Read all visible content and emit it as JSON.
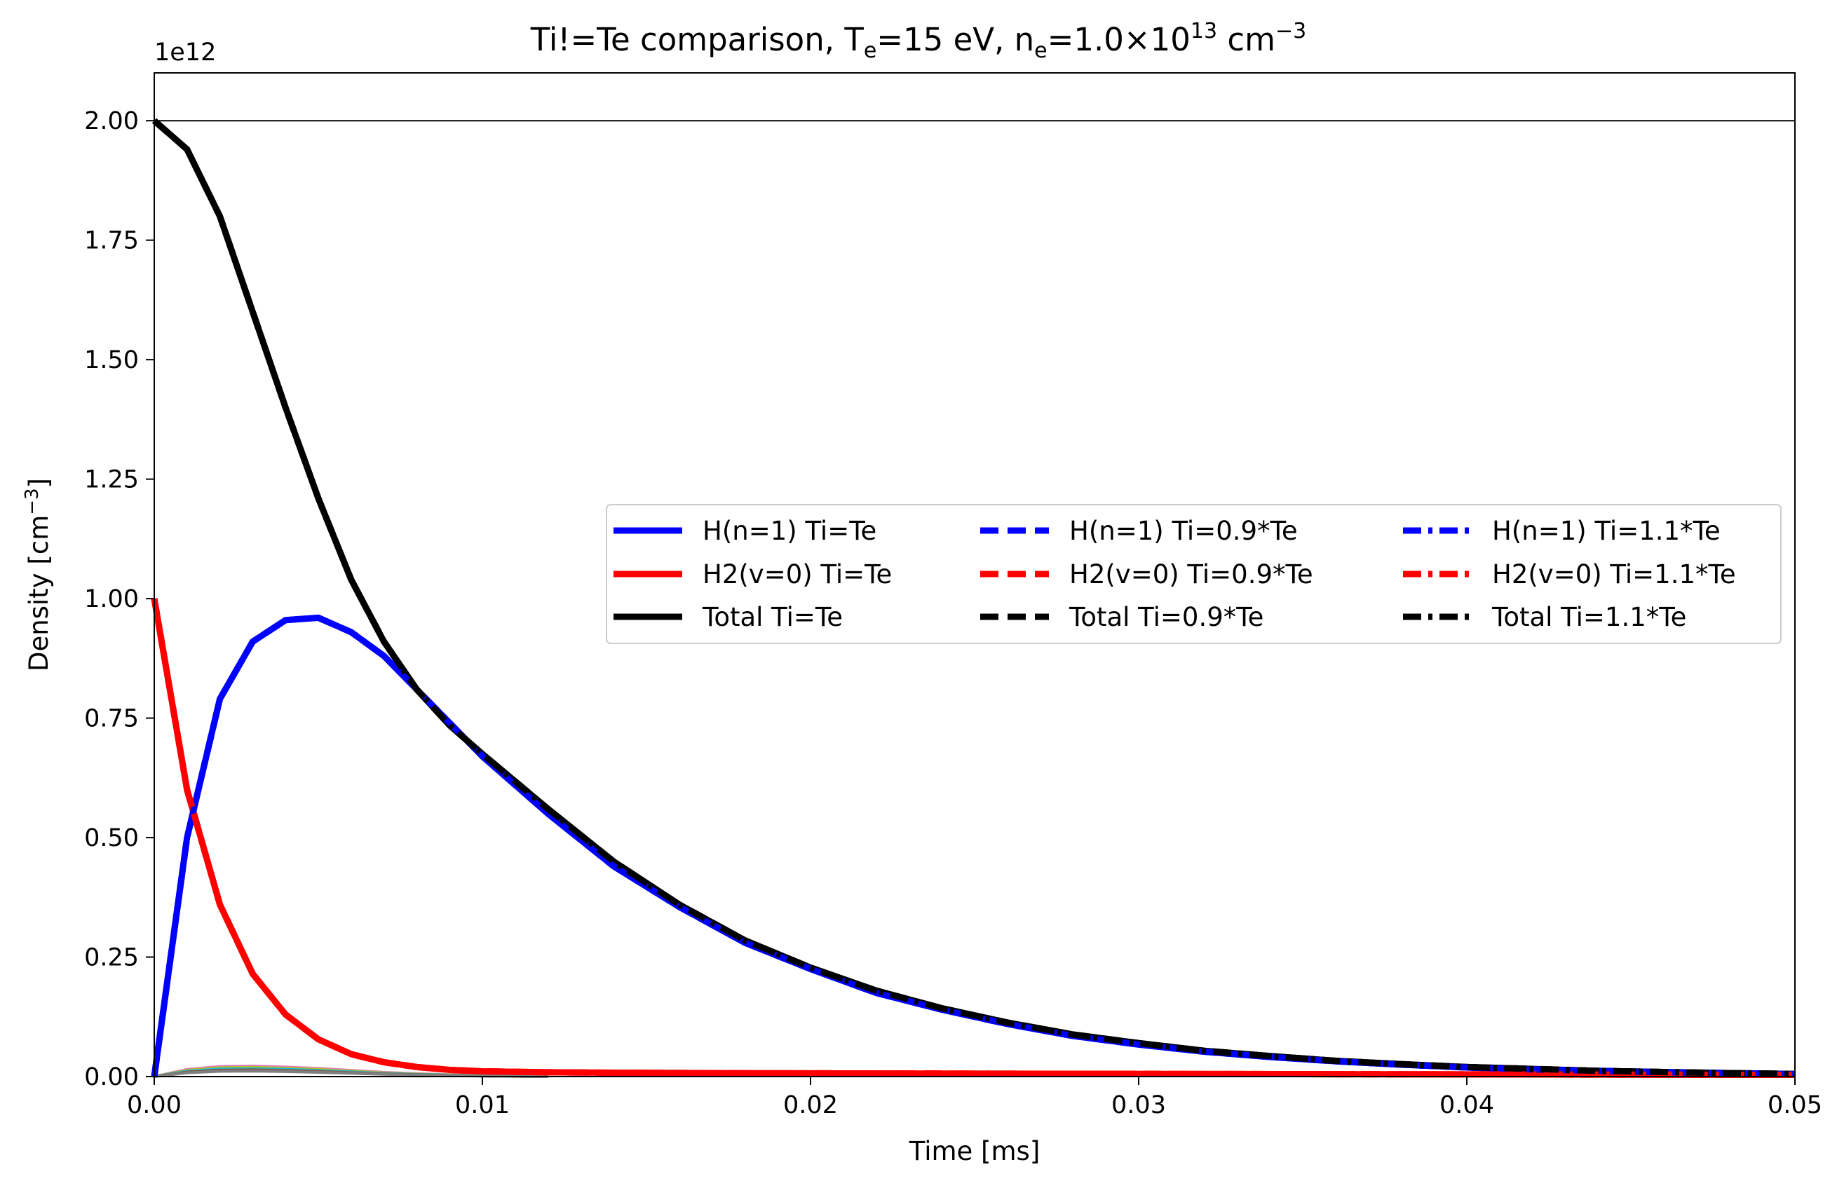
{
  "chart_data": {
    "type": "line",
    "title": {
      "main": "Ti!=Te comparison,  T",
      "sub1": "e",
      "part2": "=15 eV, n",
      "sub2": "e",
      "part3": "=1.0×10",
      "sup1": "13",
      "part4": " cm",
      "sup2": "−3"
    },
    "xlabel": "Time [ms]",
    "ylabel": {
      "main": "Density [cm",
      "sup": "−3",
      "end": "]"
    },
    "y_offset_label": "1e12",
    "xlim": [
      0,
      0.05
    ],
    "ylim": [
      0,
      2.1
    ],
    "y_scale": 1000000000000.0,
    "x_ticks": [
      0.0,
      0.01,
      0.02,
      0.03,
      0.04,
      0.05
    ],
    "x_tick_labels": [
      "0.00",
      "0.01",
      "0.02",
      "0.03",
      "0.04",
      "0.05"
    ],
    "y_ticks": [
      0.0,
      0.25,
      0.5,
      0.75,
      1.0,
      1.25,
      1.5,
      1.75,
      2.0
    ],
    "y_tick_labels": [
      "0.00",
      "0.25",
      "0.50",
      "0.75",
      "1.00",
      "1.25",
      "1.50",
      "1.75",
      "2.00"
    ],
    "hline": 2.0,
    "grid": false,
    "legend_placement": "center-right",
    "x": [
      0,
      0.001,
      0.002,
      0.003,
      0.004,
      0.005,
      0.006,
      0.007,
      0.008,
      0.009,
      0.01,
      0.012,
      0.014,
      0.016,
      0.018,
      0.02,
      0.022,
      0.024,
      0.026,
      0.028,
      0.03,
      0.032,
      0.034,
      0.036,
      0.038,
      0.04,
      0.042,
      0.044,
      0.046,
      0.048,
      0.05
    ],
    "series": [
      {
        "name": "H(n=1) Ti=Te",
        "color": "#0000ff",
        "dash": "solid",
        "values": [
          0,
          0.5,
          0.79,
          0.91,
          0.955,
          0.96,
          0.93,
          0.88,
          0.81,
          0.74,
          0.67,
          0.55,
          0.44,
          0.355,
          0.28,
          0.225,
          0.175,
          0.14,
          0.11,
          0.085,
          0.067,
          0.052,
          0.041,
          0.032,
          0.025,
          0.019,
          0.015,
          0.012,
          0.009,
          0.007,
          0.005
        ]
      },
      {
        "name": "H2(v=0) Ti=Te",
        "color": "#ff0000",
        "dash": "solid",
        "values": [
          1.0,
          0.6,
          0.36,
          0.215,
          0.13,
          0.078,
          0.047,
          0.03,
          0.02,
          0.014,
          0.011,
          0.009,
          0.008,
          0.0075,
          0.007,
          0.0068,
          0.0065,
          0.0063,
          0.006,
          0.0058,
          0.0056,
          0.0054,
          0.0052,
          0.005,
          0.0048,
          0.0046,
          0.0044,
          0.0042,
          0.004,
          0.0038,
          0.0036
        ]
      },
      {
        "name": "Total Ti=Te",
        "color": "#000000",
        "dash": "solid",
        "values": [
          2.0,
          1.94,
          1.8,
          1.6,
          1.4,
          1.21,
          1.04,
          0.91,
          0.81,
          0.735,
          0.675,
          0.56,
          0.45,
          0.36,
          0.285,
          0.228,
          0.18,
          0.143,
          0.113,
          0.088,
          0.07,
          0.054,
          0.043,
          0.033,
          0.026,
          0.02,
          0.016,
          0.012,
          0.0095,
          0.0073,
          0.0055
        ]
      },
      {
        "name": "H(n=1) Ti=0.9*Te",
        "color": "#0000ff",
        "dash": "dashed",
        "values": [
          0,
          0.5,
          0.79,
          0.91,
          0.955,
          0.96,
          0.93,
          0.88,
          0.81,
          0.74,
          0.67,
          0.55,
          0.44,
          0.355,
          0.28,
          0.225,
          0.175,
          0.14,
          0.11,
          0.085,
          0.067,
          0.052,
          0.041,
          0.032,
          0.025,
          0.019,
          0.015,
          0.012,
          0.009,
          0.007,
          0.005
        ]
      },
      {
        "name": "H2(v=0) Ti=0.9*Te",
        "color": "#ff0000",
        "dash": "dashed",
        "values": [
          1.0,
          0.6,
          0.36,
          0.215,
          0.13,
          0.078,
          0.047,
          0.03,
          0.02,
          0.014,
          0.011,
          0.009,
          0.008,
          0.0075,
          0.007,
          0.0068,
          0.0065,
          0.0063,
          0.006,
          0.0058,
          0.0056,
          0.0054,
          0.0052,
          0.005,
          0.0048,
          0.0046,
          0.0044,
          0.0042,
          0.004,
          0.0038,
          0.0036
        ]
      },
      {
        "name": "Total Ti=0.9*Te",
        "color": "#000000",
        "dash": "dashed",
        "values": [
          2.0,
          1.94,
          1.8,
          1.6,
          1.4,
          1.21,
          1.04,
          0.91,
          0.81,
          0.735,
          0.675,
          0.56,
          0.45,
          0.36,
          0.285,
          0.228,
          0.18,
          0.143,
          0.113,
          0.088,
          0.07,
          0.054,
          0.043,
          0.033,
          0.026,
          0.02,
          0.016,
          0.012,
          0.0095,
          0.0073,
          0.0055
        ]
      },
      {
        "name": "H(n=1) Ti=1.1*Te",
        "color": "#0000ff",
        "dash": "dashdot",
        "values": [
          0,
          0.5,
          0.79,
          0.91,
          0.955,
          0.96,
          0.93,
          0.88,
          0.81,
          0.74,
          0.67,
          0.55,
          0.44,
          0.355,
          0.28,
          0.225,
          0.175,
          0.14,
          0.11,
          0.085,
          0.067,
          0.052,
          0.041,
          0.032,
          0.025,
          0.019,
          0.015,
          0.012,
          0.009,
          0.007,
          0.005
        ]
      },
      {
        "name": "H2(v=0) Ti=1.1*Te",
        "color": "#ff0000",
        "dash": "dashdot",
        "values": [
          1.0,
          0.6,
          0.36,
          0.215,
          0.13,
          0.078,
          0.047,
          0.03,
          0.02,
          0.014,
          0.011,
          0.009,
          0.008,
          0.0075,
          0.007,
          0.0068,
          0.0065,
          0.0063,
          0.006,
          0.0058,
          0.0056,
          0.0054,
          0.0052,
          0.005,
          0.0048,
          0.0046,
          0.0044,
          0.0042,
          0.004,
          0.0038,
          0.0036
        ]
      },
      {
        "name": "Total Ti=1.1*Te",
        "color": "#000000",
        "dash": "dashdot",
        "values": [
          2.0,
          1.94,
          1.8,
          1.6,
          1.4,
          1.21,
          1.04,
          0.91,
          0.81,
          0.735,
          0.675,
          0.56,
          0.45,
          0.36,
          0.285,
          0.228,
          0.18,
          0.143,
          0.113,
          0.088,
          0.07,
          0.054,
          0.043,
          0.033,
          0.026,
          0.02,
          0.016,
          0.012,
          0.0095,
          0.0073,
          0.0055
        ]
      }
    ],
    "minor_series_colors": [
      "#e377c2",
      "#bcbd22",
      "#17becf",
      "#8c564b",
      "#7f7f7f"
    ],
    "minor_series": {
      "x": [
        0,
        0.001,
        0.002,
        0.003,
        0.004,
        0.005,
        0.006,
        0.007,
        0.008,
        0.009,
        0.01,
        0.012
      ],
      "values": [
        0,
        0.015,
        0.021,
        0.022,
        0.02,
        0.017,
        0.013,
        0.009,
        0.006,
        0.004,
        0.002,
        0.0
      ]
    }
  }
}
